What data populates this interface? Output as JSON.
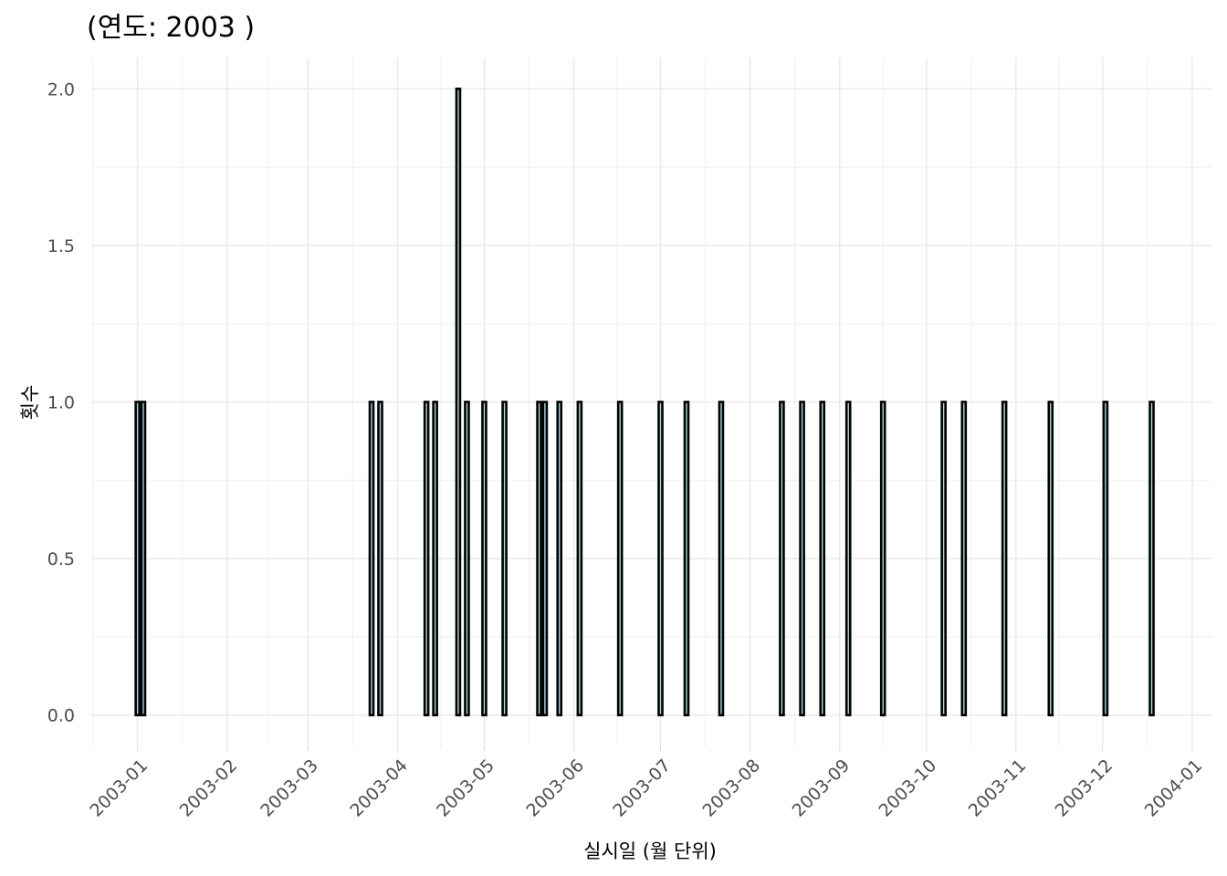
{
  "chart_data": {
    "type": "bar",
    "title": "(연도: 2003 )",
    "xlabel": "실시일 (월 단위)",
    "ylabel": "횟수",
    "x_tick_labels": [
      "2003-01",
      "2003-02",
      "2003-03",
      "2003-04",
      "2003-05",
      "2003-06",
      "2003-07",
      "2003-08",
      "2003-09",
      "2003-10",
      "2003-11",
      "2003-12",
      "2004-01"
    ],
    "y_tick_labels": [
      "0.0",
      "0.5",
      "1.0",
      "1.5",
      "2.0"
    ],
    "xlim": [
      "2002-12-16",
      "2004-01-08"
    ],
    "ylim": [
      -0.1,
      2.1
    ],
    "grid": true,
    "bar_fill": "#add8e6",
    "bar_outline": "#000000",
    "points": [
      {
        "x": "2003-01-01",
        "y": 1
      },
      {
        "x": "2003-01-03",
        "y": 1
      },
      {
        "x": "2003-03-23",
        "y": 1
      },
      {
        "x": "2003-03-26",
        "y": 1
      },
      {
        "x": "2003-04-11",
        "y": 1
      },
      {
        "x": "2003-04-14",
        "y": 1
      },
      {
        "x": "2003-04-22",
        "y": 2
      },
      {
        "x": "2003-04-25",
        "y": 1
      },
      {
        "x": "2003-05-01",
        "y": 1
      },
      {
        "x": "2003-05-08",
        "y": 1
      },
      {
        "x": "2003-05-20",
        "y": 1
      },
      {
        "x": "2003-05-22",
        "y": 1
      },
      {
        "x": "2003-05-27",
        "y": 1
      },
      {
        "x": "2003-06-03",
        "y": 1
      },
      {
        "x": "2003-06-17",
        "y": 1
      },
      {
        "x": "2003-07-01",
        "y": 1
      },
      {
        "x": "2003-07-10",
        "y": 1
      },
      {
        "x": "2003-07-22",
        "y": 1
      },
      {
        "x": "2003-08-12",
        "y": 1
      },
      {
        "x": "2003-08-19",
        "y": 1
      },
      {
        "x": "2003-08-26",
        "y": 1
      },
      {
        "x": "2003-09-04",
        "y": 1
      },
      {
        "x": "2003-09-16",
        "y": 1
      },
      {
        "x": "2003-10-07",
        "y": 1
      },
      {
        "x": "2003-10-14",
        "y": 1
      },
      {
        "x": "2003-10-28",
        "y": 1
      },
      {
        "x": "2003-11-13",
        "y": 1
      },
      {
        "x": "2003-12-02",
        "y": 1
      },
      {
        "x": "2003-12-18",
        "y": 1
      }
    ]
  }
}
